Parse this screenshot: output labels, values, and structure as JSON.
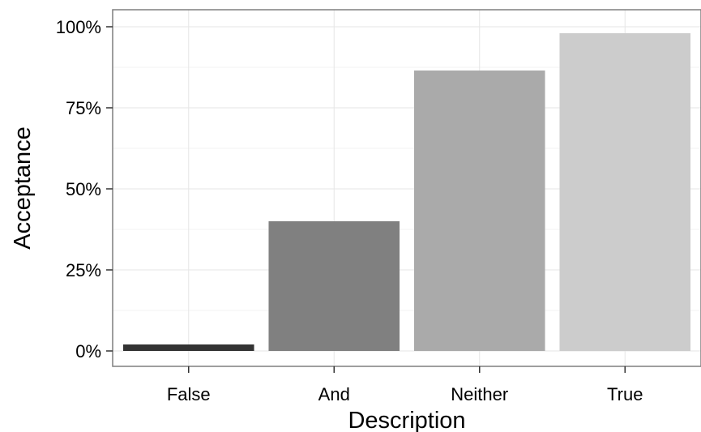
{
  "chart_data": {
    "type": "bar",
    "title": "",
    "xlabel": "Description",
    "ylabel": "Acceptance",
    "categories": [
      "False",
      "And",
      "Neither",
      "True"
    ],
    "values": [
      0.02,
      0.4,
      0.865,
      0.98
    ],
    "bar_colors": [
      "#333333",
      "#808080",
      "#aaaaaa",
      "#cccccc"
    ],
    "ylim": [
      -0.05,
      1.05
    ],
    "y_ticks": [
      0,
      0.25,
      0.5,
      0.75,
      1.0
    ],
    "y_tick_labels": [
      "0%",
      "25%",
      "50%",
      "75%",
      "100%"
    ],
    "grid": true,
    "legend": "none"
  }
}
